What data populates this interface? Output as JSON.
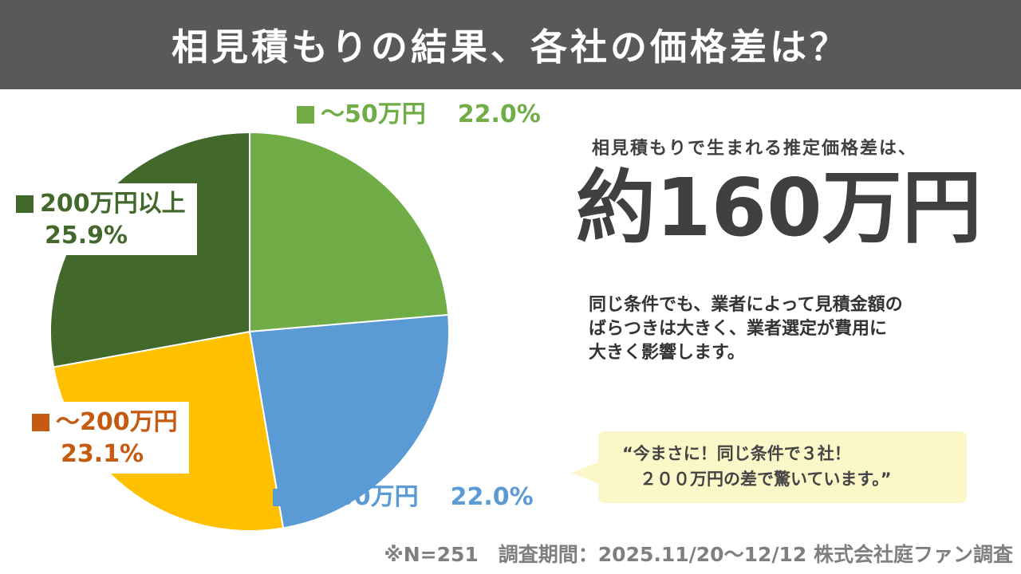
{
  "title": "相見積もりの結果、各社の価格差は？",
  "chart_data": {
    "type": "pie",
    "slices": [
      {
        "label": "〜50万円",
        "value": 22.0,
        "value_label": "22.0%",
        "color": "#70ad47"
      },
      {
        "label": "〜100万円",
        "value": 22.0,
        "value_label": "22.0%",
        "color": "#5b9bd5"
      },
      {
        "label": "〜200万円",
        "value": 23.1,
        "value_label": "23.1%",
        "color": "#c55a11",
        "slice_color": "#ffc000"
      },
      {
        "label": "200万円以上",
        "value": 25.9,
        "value_label": "25.9%",
        "color": "#43682b",
        "slice_color": "#43682b"
      }
    ],
    "legend_marker": "■"
  },
  "estimate": {
    "lead": "相見積もりで生まれる推定価格差は、",
    "value": "約160万円"
  },
  "description": [
    "同じ条件でも、業者によって見積金額の",
    "ばらつきは大きく、業者選定が費用に",
    "大きく影響します。"
  ],
  "quote": {
    "line1": "“今まさに！同じ条件で３社！",
    "line2": "２００万円の差で驚いています。”"
  },
  "footnote": "※N=251　調査期間：2025.11/20〜12/12 株式会社庭ファン調査"
}
